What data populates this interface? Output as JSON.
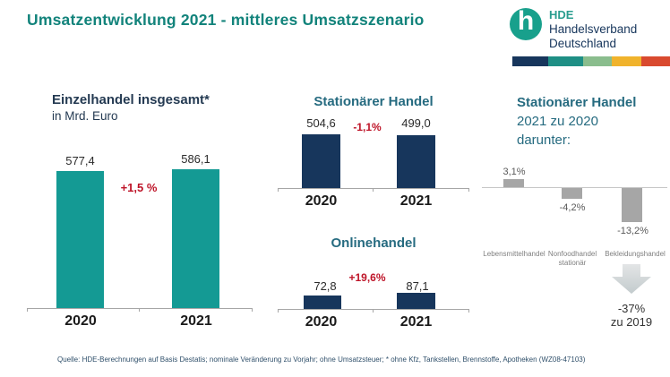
{
  "page": {
    "title": "Umsatzentwicklung 2021 - mittleres Umsatzszenario",
    "source": "Quelle: HDE-Berechnungen auf Basis Destatis; nominale Veränderung zu Vorjahr; ohne Umsatzsteuer; * ohne Kfz, Tankstellen, Brennstoffe, Apotheken (WZ08-47103)"
  },
  "logo": {
    "glyph": "h",
    "abbr": "HDE",
    "name_line1": "Handelsverband",
    "name_line2": "Deutschland",
    "bar_colors": [
      "#17365c",
      "#1f8f85",
      "#8abd8d",
      "#f0b32c",
      "#d94a2f"
    ]
  },
  "colors": {
    "teal_bar": "#149a94",
    "navy_bar": "#17365c",
    "title_teal": "#12837b",
    "subtitle_petrol": "#266b80",
    "change_red": "#be1428",
    "gray_bar": "#a6a6a6"
  },
  "chart_data": [
    {
      "id": "einzelhandel",
      "type": "bar",
      "title": "Einzelhandel insgesamt*",
      "subtitle": "in Mrd. Euro",
      "categories": [
        "2020",
        "2021"
      ],
      "values": [
        577.4,
        586.1
      ],
      "value_labels": [
        "577,4",
        "586,1"
      ],
      "change_label": "+1,5 %",
      "bar_color": "#149a94"
    },
    {
      "id": "stationaer",
      "type": "bar",
      "title": "Stationärer Handel",
      "categories": [
        "2020",
        "2021"
      ],
      "values": [
        504.6,
        499.0
      ],
      "value_labels": [
        "504,6",
        "499,0"
      ],
      "change_label": "-1,1%",
      "bar_color": "#17365c"
    },
    {
      "id": "online",
      "type": "bar",
      "title": "Onlinehandel",
      "categories": [
        "2020",
        "2021"
      ],
      "values": [
        72.8,
        87.1
      ],
      "value_labels": [
        "72,8",
        "87,1"
      ],
      "change_label": "+19,6%",
      "bar_color": "#17365c"
    },
    {
      "id": "stationaer_detail",
      "type": "bar",
      "title": "Stationärer Handel",
      "subtitle_line1": "2021 zu 2020",
      "subtitle_line2": "darunter:",
      "categories": [
        "Lebensmittelhandel",
        "Nonfoodhandel stationär",
        "Bekleidungshandel"
      ],
      "values": [
        3.1,
        -4.2,
        -13.2
      ],
      "value_labels": [
        "3,1%",
        "-4,2%",
        "-13,2%"
      ],
      "bar_color": "#a6a6a6",
      "annotation": {
        "arrow": "down-arrow",
        "line1": "-37%",
        "line2": "zu 2019"
      }
    }
  ]
}
